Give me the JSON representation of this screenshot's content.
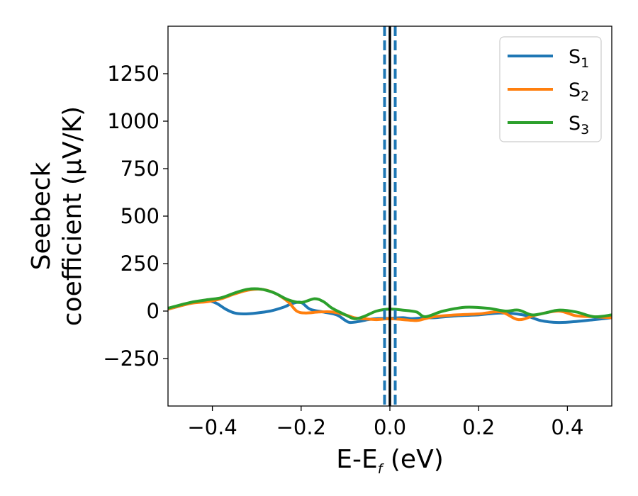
{
  "chart_data": {
    "type": "line",
    "xlabel": {
      "main": "E-E",
      "sub": "f",
      "rest": " (eV)"
    },
    "ylabel": {
      "line1": "Seebeck",
      "line2": "coefficient  (μV/K)"
    },
    "xlim": [
      -0.5,
      0.5
    ],
    "ylim": [
      -500,
      1500
    ],
    "xticks": [
      -0.4,
      -0.2,
      0.0,
      0.2,
      0.4
    ],
    "xtick_labels": [
      "−0.4",
      "−0.2",
      "0.0",
      "0.2",
      "0.4"
    ],
    "yticks": [
      -250,
      0,
      250,
      500,
      750,
      1000,
      1250
    ],
    "ytick_labels": [
      "−250",
      "0",
      "250",
      "500",
      "750",
      "1000",
      "1250"
    ],
    "legend_placement": "top-right",
    "grid": false,
    "series": [
      {
        "name": "S",
        "name_sub": "1",
        "color": "#1f77b4",
        "x": [
          -0.5,
          -0.46,
          -0.43,
          -0.41,
          -0.39,
          -0.37,
          -0.35,
          -0.33,
          -0.3,
          -0.27,
          -0.24,
          -0.22,
          -0.2,
          -0.18,
          -0.15,
          -0.12,
          -0.1,
          -0.09,
          -0.07,
          -0.05,
          -0.03,
          0.0,
          0.03,
          0.05,
          0.08,
          0.1,
          0.15,
          0.2,
          0.25,
          0.3,
          0.34,
          0.38,
          0.42,
          0.46,
          0.5
        ],
        "y": [
          10,
          35,
          50,
          55,
          40,
          10,
          -10,
          -15,
          -10,
          0,
          20,
          40,
          45,
          10,
          -5,
          -20,
          -50,
          -60,
          -55,
          -45,
          -40,
          -38,
          -35,
          -40,
          -35,
          -35,
          -25,
          -20,
          -10,
          -20,
          -50,
          -60,
          -55,
          -45,
          -35
        ]
      },
      {
        "name": "S",
        "name_sub": "2",
        "color": "#ff7f0e",
        "x": [
          -0.5,
          -0.45,
          -0.41,
          -0.38,
          -0.35,
          -0.32,
          -0.29,
          -0.26,
          -0.23,
          -0.21,
          -0.19,
          -0.16,
          -0.13,
          -0.1,
          -0.08,
          -0.06,
          -0.03,
          0.0,
          0.03,
          0.06,
          0.08,
          0.1,
          0.15,
          0.2,
          0.25,
          0.29,
          0.33,
          0.38,
          0.42,
          0.46,
          0.5
        ],
        "y": [
          10,
          40,
          50,
          65,
          90,
          110,
          115,
          95,
          50,
          0,
          -10,
          -5,
          -5,
          -20,
          -35,
          -40,
          -45,
          -40,
          -45,
          -50,
          -40,
          -30,
          -20,
          -15,
          -5,
          -45,
          -20,
          0,
          -25,
          -30,
          -35
        ]
      },
      {
        "name": "S",
        "name_sub": "3",
        "color": "#2ca02c",
        "x": [
          -0.5,
          -0.45,
          -0.41,
          -0.38,
          -0.35,
          -0.32,
          -0.29,
          -0.26,
          -0.23,
          -0.2,
          -0.17,
          -0.15,
          -0.13,
          -0.1,
          -0.08,
          -0.06,
          -0.03,
          0.0,
          0.03,
          0.06,
          0.08,
          0.12,
          0.17,
          0.22,
          0.26,
          0.29,
          0.32,
          0.35,
          0.38,
          0.42,
          0.46,
          0.5
        ],
        "y": [
          15,
          45,
          60,
          70,
          95,
          115,
          115,
          95,
          60,
          45,
          65,
          50,
          15,
          -20,
          -40,
          -30,
          0,
          10,
          5,
          -5,
          -30,
          0,
          20,
          15,
          0,
          5,
          -20,
          -10,
          5,
          -5,
          -30,
          -20
        ]
      }
    ],
    "vertical_lines": [
      {
        "x": 0.0,
        "style": "solid",
        "color": "#000000"
      },
      {
        "x": -0.012,
        "style": "dashed",
        "color": "#1f77b4"
      },
      {
        "x": 0.012,
        "style": "dashed",
        "color": "#1f77b4"
      }
    ]
  }
}
